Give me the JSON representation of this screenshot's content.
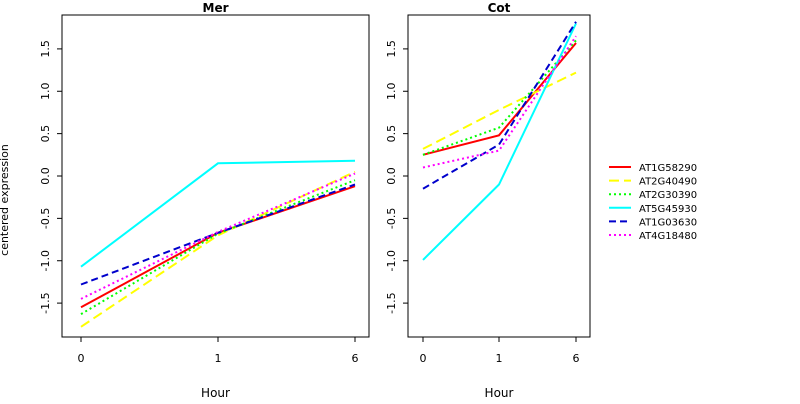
{
  "figure": {
    "ylabel": "centered expression",
    "legend_position": "right"
  },
  "chart_data": [
    {
      "type": "line",
      "title": "Mer",
      "xlabel": "Hour",
      "ylabel": "centered expression",
      "categories": [
        "0",
        "1",
        "6"
      ],
      "ylim": [
        -1.9,
        1.9
      ],
      "yticks": [
        -1.5,
        -1.0,
        -0.5,
        0.0,
        0.5,
        1.0,
        1.5
      ],
      "ytick_labels": [
        "-1.5",
        "-1.0",
        "-0.5",
        "0.0",
        "0.5",
        "1.0",
        "1.5"
      ],
      "grid": false,
      "series": [
        {
          "name": "AT1G58290",
          "color": "#FF0000",
          "dash": "solid",
          "values": [
            -1.55,
            -0.67,
            -0.12
          ]
        },
        {
          "name": "AT2G40490",
          "color": "#FFFF00",
          "dash": "longdash",
          "values": [
            -1.78,
            -0.7,
            0.05
          ]
        },
        {
          "name": "AT2G30390",
          "color": "#00FF00",
          "dash": "dotted",
          "values": [
            -1.63,
            -0.68,
            -0.05
          ]
        },
        {
          "name": "AT5G45930",
          "color": "#00FFFF",
          "dash": "solid",
          "values": [
            -1.07,
            0.15,
            0.18
          ]
        },
        {
          "name": "AT1G03630",
          "color": "#0000CC",
          "dash": "dashed",
          "values": [
            -1.28,
            -0.67,
            -0.1
          ]
        },
        {
          "name": "AT4G18480",
          "color": "#FF00FF",
          "dash": "dotted",
          "values": [
            -1.45,
            -0.66,
            0.03
          ]
        }
      ]
    },
    {
      "type": "line",
      "title": "Cot",
      "xlabel": "Hour",
      "categories": [
        "0",
        "1",
        "6"
      ],
      "ylim": [
        -1.9,
        1.9
      ],
      "yticks": [
        -1.5,
        -1.0,
        -0.5,
        0.0,
        0.5,
        1.0,
        1.5
      ],
      "ytick_labels": [
        "-1.5",
        "-1.0",
        "-0.5",
        "0.0",
        "0.5",
        "1.0",
        "1.5"
      ],
      "grid": false,
      "series": [
        {
          "name": "AT1G58290",
          "color": "#FF0000",
          "dash": "solid",
          "values": [
            0.25,
            0.48,
            1.57
          ]
        },
        {
          "name": "AT2G40490",
          "color": "#FFFF00",
          "dash": "longdash",
          "values": [
            0.32,
            0.78,
            1.22
          ]
        },
        {
          "name": "AT2G30390",
          "color": "#00FF00",
          "dash": "dotted",
          "values": [
            0.25,
            0.57,
            1.6
          ]
        },
        {
          "name": "AT5G45930",
          "color": "#00FFFF",
          "dash": "solid",
          "values": [
            -0.99,
            -0.1,
            1.8
          ]
        },
        {
          "name": "AT1G03630",
          "color": "#0000CC",
          "dash": "dashed",
          "values": [
            -0.15,
            0.37,
            1.82
          ]
        },
        {
          "name": "AT4G18480",
          "color": "#FF00FF",
          "dash": "dotted",
          "values": [
            0.1,
            0.3,
            1.65
          ]
        }
      ]
    }
  ],
  "legend": [
    {
      "name": "AT1G58290",
      "color": "#FF0000",
      "dash": "solid"
    },
    {
      "name": "AT2G40490",
      "color": "#FFFF00",
      "dash": "longdash"
    },
    {
      "name": "AT2G30390",
      "color": "#00FF00",
      "dash": "dotted"
    },
    {
      "name": "AT5G45930",
      "color": "#00FFFF",
      "dash": "solid"
    },
    {
      "name": "AT1G03630",
      "color": "#0000CC",
      "dash": "dashed"
    },
    {
      "name": "AT4G18480",
      "color": "#FF00FF",
      "dash": "dotted"
    }
  ]
}
